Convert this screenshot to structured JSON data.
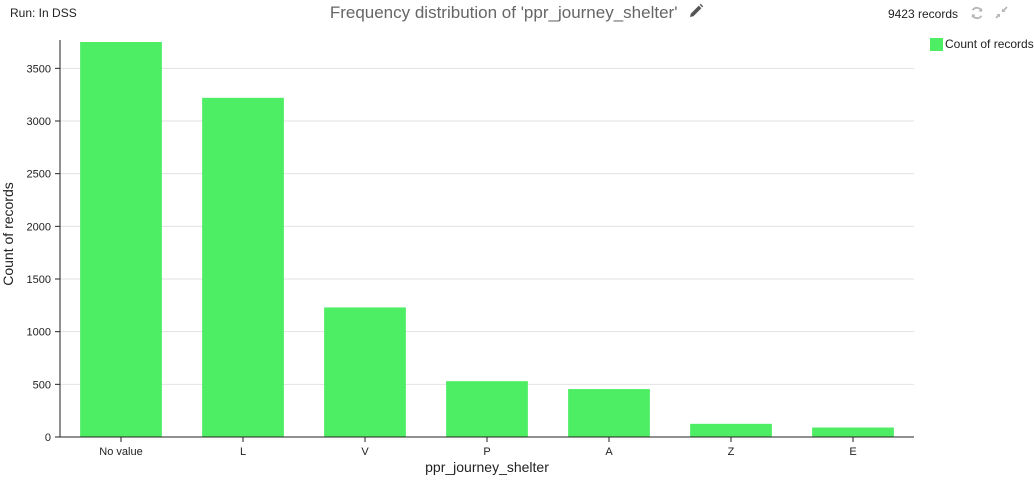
{
  "header": {
    "run_label": "Run: In DSS",
    "title": "Frequency distribution of 'ppr_journey_shelter'",
    "records": "9423 records",
    "icons": {
      "edit": "pencil-icon",
      "refresh": "refresh-icon",
      "collapse": "collapse-icon"
    }
  },
  "chart_data": {
    "type": "bar",
    "title": "Frequency distribution of 'ppr_journey_shelter'",
    "categories": [
      "No value",
      "L",
      "V",
      "P",
      "A",
      "Z",
      "E"
    ],
    "series": [
      {
        "name": "Count of records",
        "color": "#4ded64",
        "values": [
          3750,
          3220,
          1230,
          530,
          455,
          125,
          90
        ]
      }
    ],
    "xlabel": "ppr_journey_shelter",
    "ylabel": "Count of records",
    "ylim": [
      0,
      3750
    ],
    "yticks": [
      0,
      500,
      1000,
      1500,
      2000,
      2500,
      3000,
      3500
    ],
    "grid": true,
    "legend_position": "top-right"
  }
}
